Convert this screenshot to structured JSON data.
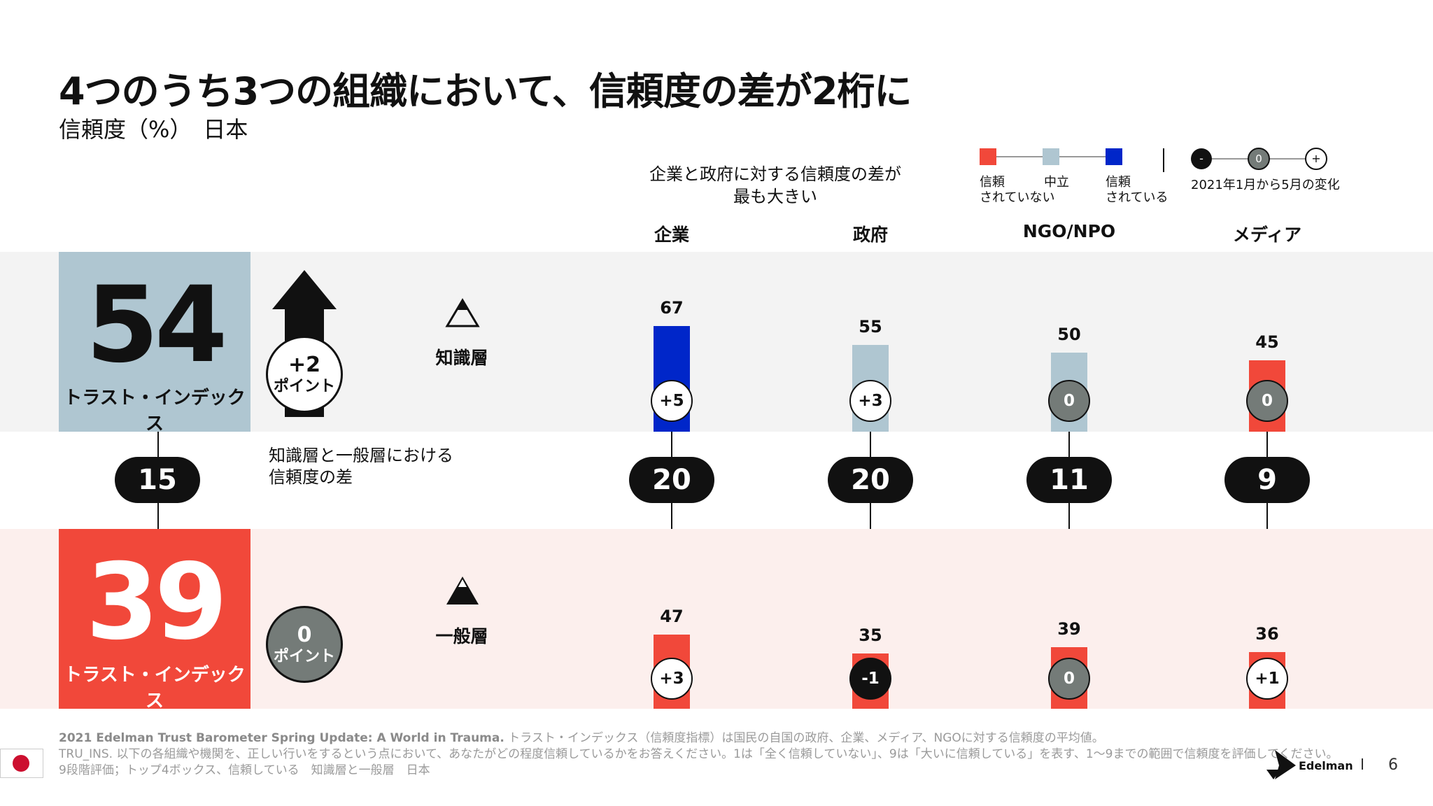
{
  "title": "4つのうち3つの組織において、信頼度の差が2桁に",
  "subtitle": "信頼度（%）　日本",
  "annotation": [
    "企業と政府に対する信頼度の差が",
    "最も大きい"
  ],
  "legend": {
    "scale": [
      "信頼\nされていない",
      "中立",
      "信頼\nされている"
    ],
    "change_label": "2021年1月から5月の変化",
    "change_symbols": [
      "-",
      "0",
      "+"
    ],
    "colors": {
      "distrust": "#f1483a",
      "neutral": "#afc6d1",
      "trust": "#0026c9"
    }
  },
  "segments": {
    "informed": {
      "index": "54",
      "index_label": "トラスト・インデックス",
      "change_value": "+2",
      "change_unit": "ポイント",
      "label": "知識層"
    },
    "general": {
      "index": "39",
      "index_label": "トラスト・インデックス",
      "change_value": "0",
      "change_unit": "ポイント",
      "label": "一般層"
    },
    "gap_value": "15",
    "gap_label": [
      "知識層と一般層における",
      "信頼度の差"
    ]
  },
  "chart_data": {
    "type": "bar",
    "categories": [
      "企業",
      "政府",
      "NGO/NPO",
      "メディア"
    ],
    "series": [
      {
        "name": "知識層",
        "values": [
          67,
          55,
          50,
          45
        ],
        "colors": [
          "#0026c9",
          "#afc6d1",
          "#afc6d1",
          "#f1483a"
        ],
        "changes": [
          "+5",
          "+3",
          "0",
          "0"
        ]
      },
      {
        "name": "一般層",
        "values": [
          47,
          35,
          39,
          36
        ],
        "colors": [
          "#f1483a",
          "#f1483a",
          "#f1483a",
          "#f1483a"
        ],
        "changes": [
          "+3",
          "-1",
          "0",
          "+1"
        ]
      }
    ],
    "gaps": [
      "20",
      "20",
      "11",
      "9"
    ]
  },
  "footer": {
    "line1_bold": "2021 Edelman Trust Barometer Spring Update: A World in Trauma.",
    "line1": " トラスト・インデックス（信頼度指標）は国民の自国の政府、企業、メディア、NGOに対する信頼度の平均値。",
    "line2": "TRU_INS. 以下の各組織や機関を、正しい行いをするという点において、あなたがどの程度信頼しているかをお答えください。1は「全く信頼していない」、9は「大いに信頼している」を表す、1～9までの範囲で信頼度を評価してください。",
    "line3": "9段階評価；トップ4ボックス、信頼している　知識層と一般層　日本"
  },
  "brand": "Edelman",
  "page_number": "6"
}
